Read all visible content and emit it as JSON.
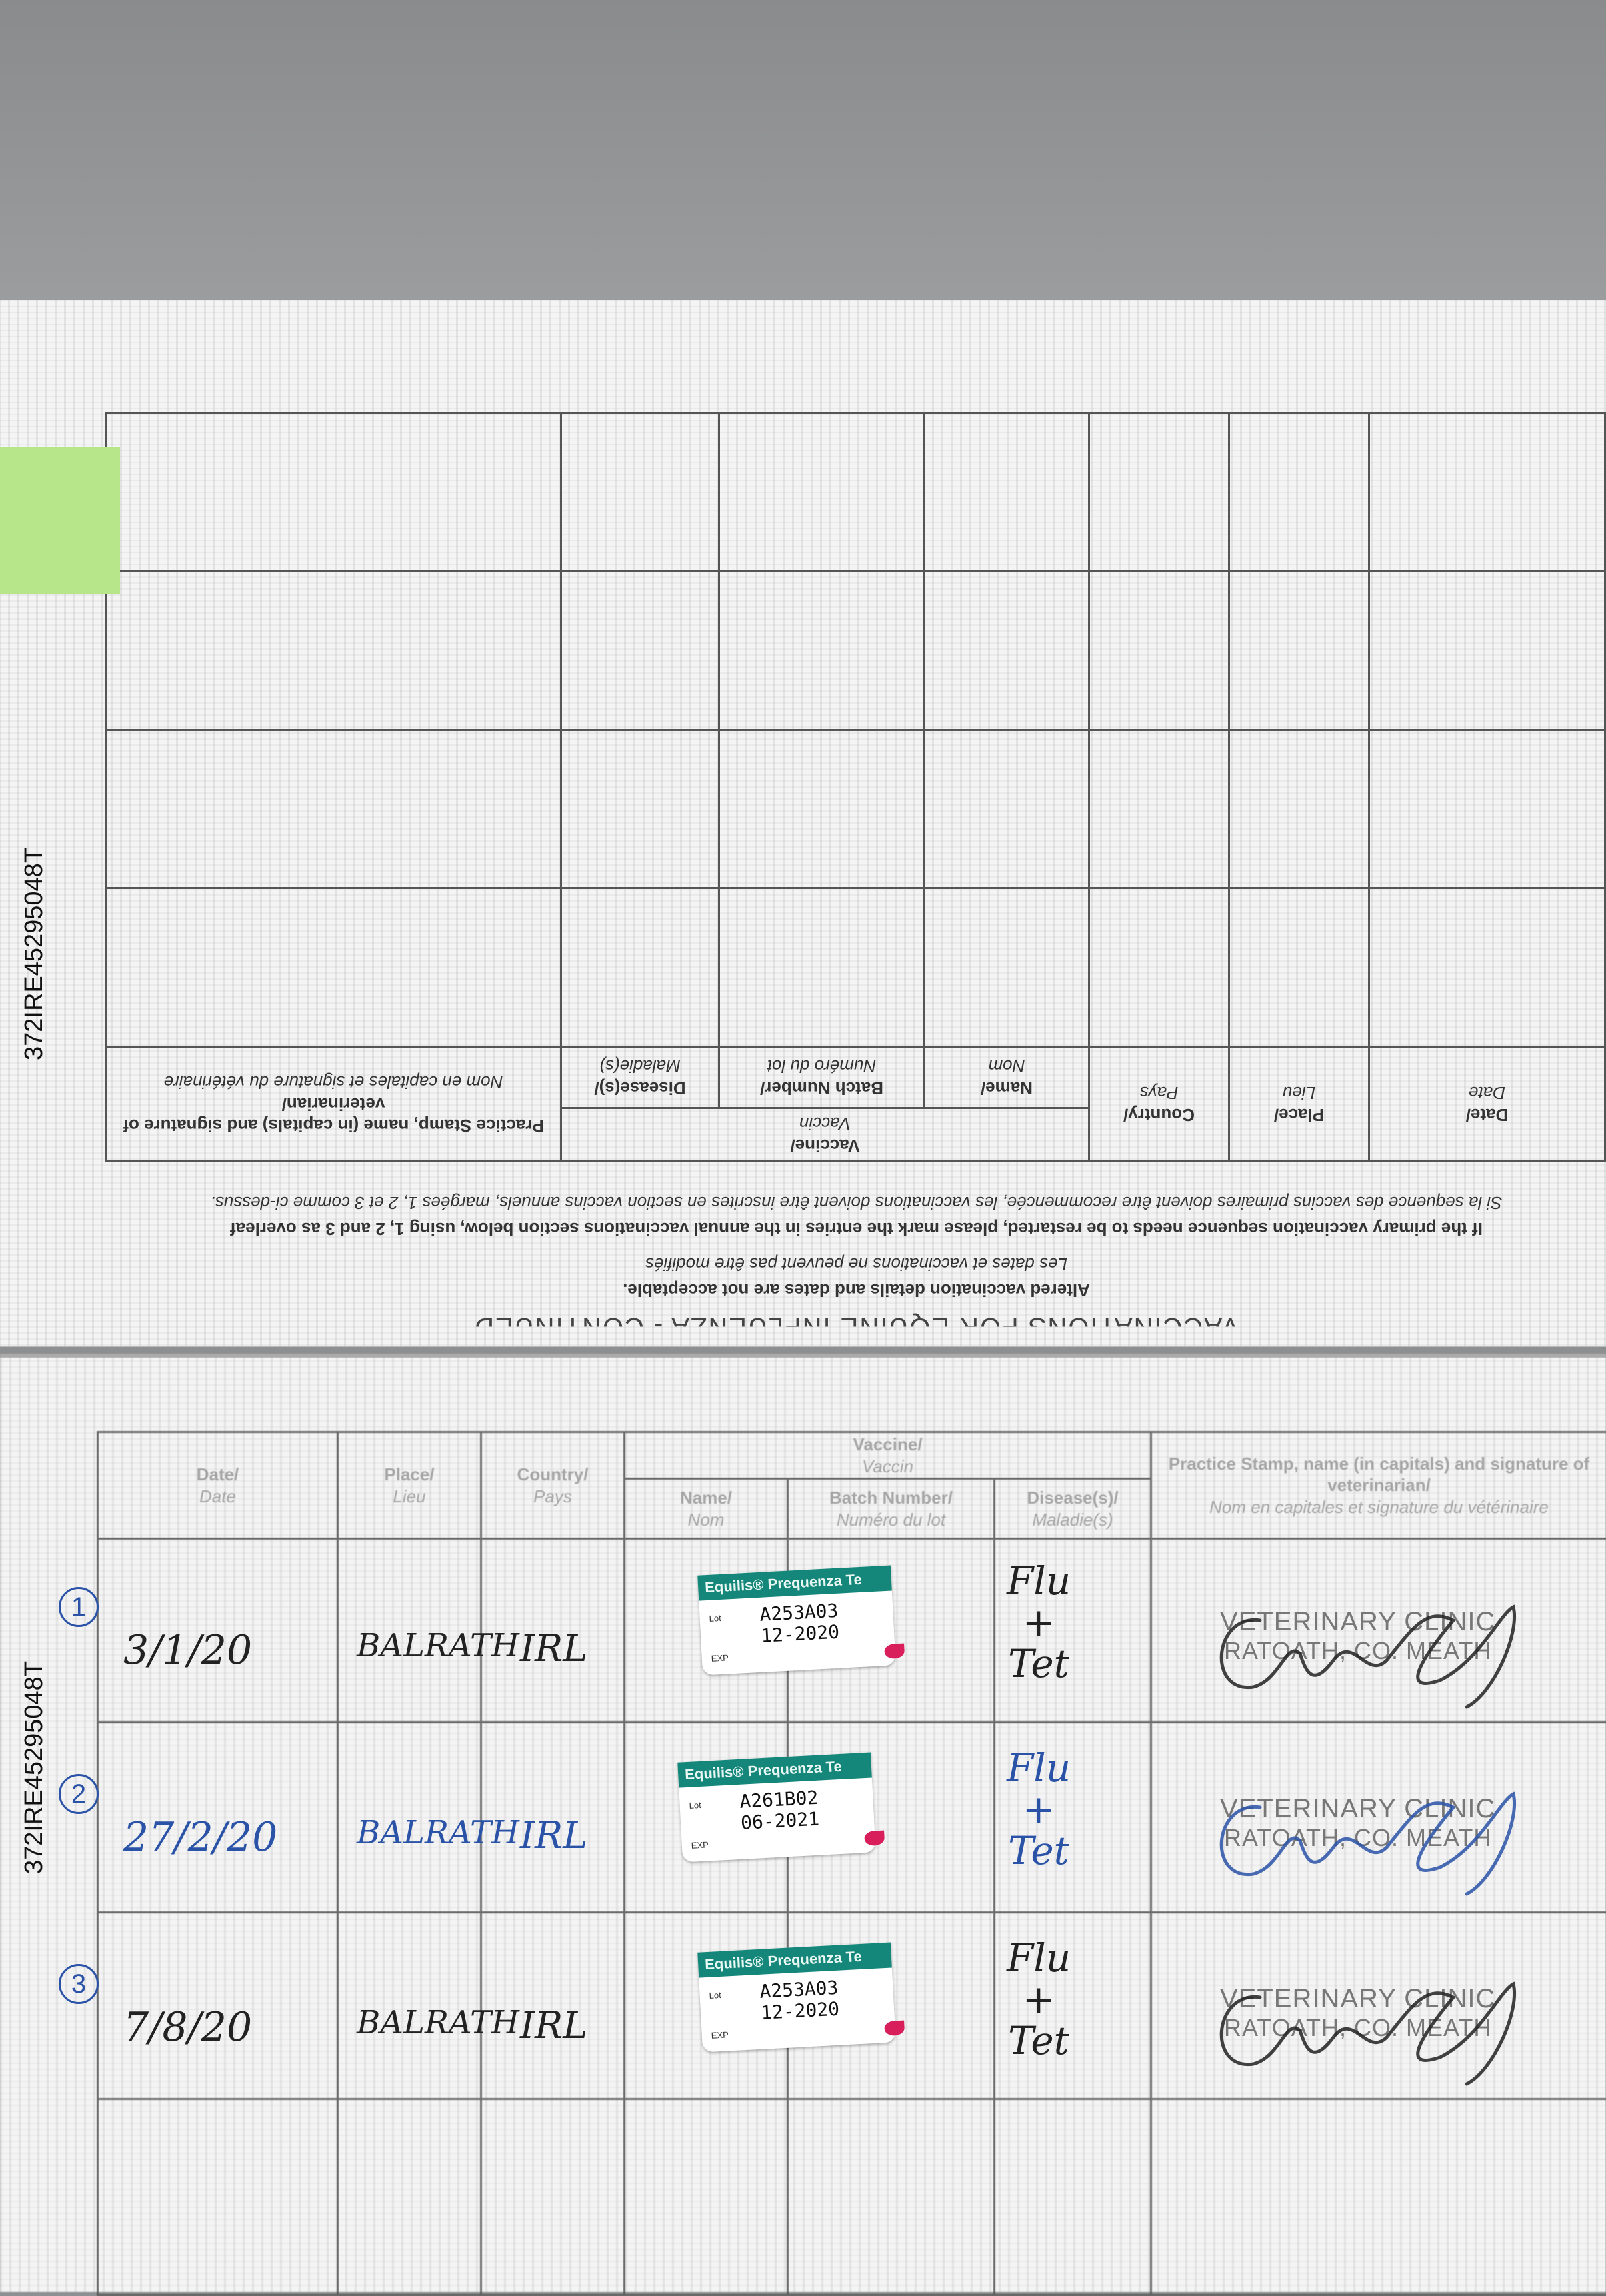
{
  "document_id": "372IRE45295048T",
  "upper_page": {
    "heading": "VACCINATIONS FOR EQUINE INFLUENZA - CONTINUED",
    "notice_en": "Altered vaccination details and dates are not acceptable.",
    "notice_fr": "Les dates et vaccinations ne peuvent pas être modifiés",
    "restart_en": "If the primary vaccination sequence needs to be restarted, please mark the entries in the annual vaccinations section below, using 1, 2 and 3 as overleaf",
    "restart_fr": "Si la sequence des vaccins primaires doivent être recommencée, les vaccinations doivent être inscrites en section vaccins annuels, margées 1, 2 et 3 comme ci-dessus.",
    "headers": {
      "date": [
        "Date/",
        "Date"
      ],
      "place": [
        "Place/",
        "Lieu"
      ],
      "country": [
        "Country/",
        "Pays"
      ],
      "vaccine": [
        "Vaccine/",
        "Vaccin"
      ],
      "name": [
        "Name/",
        "Nom"
      ],
      "batch": [
        "Batch Number/",
        "Numéro du lot"
      ],
      "disease": [
        "Disease(s)/",
        "Maladie(s)"
      ],
      "stamp": [
        "Practice Stamp, name (in capitals) and signature of veterinarian/",
        "Nom en capitales et signature du vétérinaire"
      ]
    }
  },
  "lower_page": {
    "entries": [
      {
        "marker": "1",
        "date": "3/1/20",
        "place": "BALRATH",
        "country": "IRL",
        "vaccine_name": "Equilis® Prequenza Te",
        "lot": "A253A03",
        "exp": "12-2020",
        "diseases": [
          "Flu",
          "+",
          "Tet"
        ],
        "stamp": [
          "VETERINARY CLINIC",
          "RATOATH, CO. MEATH"
        ],
        "ink": "#222222"
      },
      {
        "marker": "2",
        "date": "27/2/20",
        "place": "BALRATH",
        "country": "IRL",
        "vaccine_name": "Equilis® Prequenza Te",
        "lot": "A261B02",
        "exp": "06-2021",
        "diseases": [
          "Flu",
          "+",
          "Tet"
        ],
        "stamp": [
          "VETERINARY CLINIC",
          "RATOATH, CO. MEATH"
        ],
        "ink": "#2a53a8"
      },
      {
        "marker": "3",
        "date": "7/8/20",
        "place": "BALRATH",
        "country": "IRL",
        "vaccine_name": "Equilis® Prequenza Te",
        "lot": "A253A03",
        "exp": "12-2020",
        "diseases": [
          "Flu",
          "+",
          "Tet"
        ],
        "stamp": [
          "VETERINARY CLINIC",
          "RATOATH, CO. MEATH"
        ],
        "ink": "#222222"
      }
    ],
    "sticker_labels": {
      "lot": "Lot",
      "exp": "EXP"
    },
    "sticker_color": "#14877a"
  }
}
